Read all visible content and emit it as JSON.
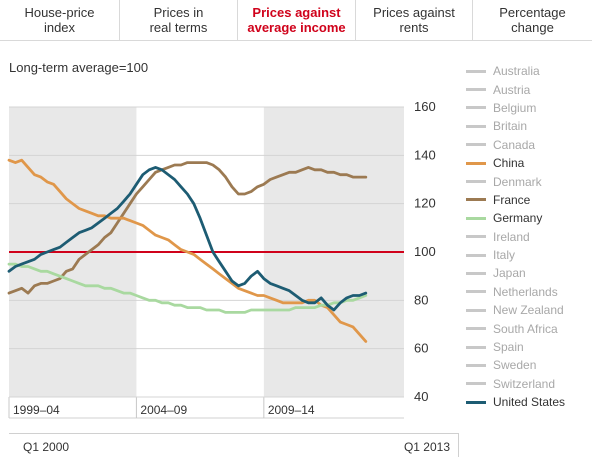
{
  "tabs": [
    {
      "label": "House-price\nindex",
      "active": false
    },
    {
      "label": "Prices in\nreal terms",
      "active": false
    },
    {
      "label": "Prices against\naverage income",
      "active": true
    },
    {
      "label": "Prices against\nrents",
      "active": false
    },
    {
      "label": "Percentage\nchange",
      "active": false
    }
  ],
  "subtitle": "Long-term average=100",
  "footer": {
    "start_label": "Q1 2000",
    "end_label": "Q1 2013"
  },
  "legend": [
    {
      "label": "Australia",
      "active": false,
      "color": "#c8c8c8"
    },
    {
      "label": "Austria",
      "active": false,
      "color": "#c8c8c8"
    },
    {
      "label": "Belgium",
      "active": false,
      "color": "#c8c8c8"
    },
    {
      "label": "Britain",
      "active": false,
      "color": "#c8c8c8"
    },
    {
      "label": "Canada",
      "active": false,
      "color": "#c8c8c8"
    },
    {
      "label": "China",
      "active": true,
      "color": "#e0974a"
    },
    {
      "label": "Denmark",
      "active": false,
      "color": "#c8c8c8"
    },
    {
      "label": "France",
      "active": true,
      "color": "#9c7a52"
    },
    {
      "label": "Germany",
      "active": true,
      "color": "#a9d9a0"
    },
    {
      "label": "Ireland",
      "active": false,
      "color": "#c8c8c8"
    },
    {
      "label": "Italy",
      "active": false,
      "color": "#c8c8c8"
    },
    {
      "label": "Japan",
      "active": false,
      "color": "#c8c8c8"
    },
    {
      "label": "Netherlands",
      "active": false,
      "color": "#c8c8c8"
    },
    {
      "label": "New Zealand",
      "active": false,
      "color": "#c8c8c8"
    },
    {
      "label": "South Africa",
      "active": false,
      "color": "#c8c8c8"
    },
    {
      "label": "Spain",
      "active": false,
      "color": "#c8c8c8"
    },
    {
      "label": "Sweden",
      "active": false,
      "color": "#c8c8c8"
    },
    {
      "label": "Switzerland",
      "active": false,
      "color": "#c8c8c8"
    },
    {
      "label": "United States",
      "active": true,
      "color": "#1d5c73"
    }
  ],
  "chart_data": {
    "type": "line",
    "ylim": [
      40,
      160
    ],
    "yticks": [
      40,
      60,
      80,
      100,
      120,
      140,
      160
    ],
    "xlim": [
      1999.0,
      2014.5
    ],
    "reference_line": {
      "value": 100,
      "color": "#d0021b"
    },
    "periods": [
      {
        "label": "1999–04",
        "start": 1999.0,
        "end": 2004.0,
        "shaded": true
      },
      {
        "label": "2004–09",
        "start": 2004.0,
        "end": 2009.0,
        "shaded": false
      },
      {
        "label": "2009–14",
        "start": 2009.0,
        "end": 2014.5,
        "shaded": true
      }
    ],
    "series": [
      {
        "name": "France",
        "color": "#9c7a52",
        "x": [
          1999.0,
          1999.25,
          1999.5,
          1999.75,
          2000.0,
          2000.25,
          2000.5,
          2000.75,
          2001.0,
          2001.25,
          2001.5,
          2001.75,
          2002.0,
          2002.25,
          2002.5,
          2002.75,
          2003.0,
          2003.25,
          2003.5,
          2003.75,
          2004.0,
          2004.25,
          2004.5,
          2004.75,
          2005.0,
          2005.25,
          2005.5,
          2005.75,
          2006.0,
          2006.25,
          2006.5,
          2006.75,
          2007.0,
          2007.25,
          2007.5,
          2007.75,
          2008.0,
          2008.25,
          2008.5,
          2008.75,
          2009.0,
          2009.25,
          2009.5,
          2009.75,
          2010.0,
          2010.25,
          2010.5,
          2010.75,
          2011.0,
          2011.25,
          2011.5,
          2011.75,
          2012.0,
          2012.25,
          2012.5,
          2012.75,
          2013.0
        ],
        "y": [
          83,
          84,
          85,
          83,
          86,
          87,
          87,
          88,
          89,
          92,
          93,
          97,
          99,
          101,
          103,
          106,
          108,
          112,
          116,
          120,
          124,
          127,
          130,
          133,
          134,
          135,
          136,
          136,
          137,
          137,
          137,
          137,
          136,
          134,
          131,
          127,
          124,
          124,
          125,
          127,
          128,
          130,
          131,
          132,
          133,
          133,
          134,
          135,
          134,
          134,
          133,
          133,
          132,
          132,
          131,
          131,
          131
        ]
      },
      {
        "name": "China",
        "color": "#e0974a",
        "x": [
          1999.0,
          1999.25,
          1999.5,
          1999.75,
          2000.0,
          2000.25,
          2000.5,
          2000.75,
          2001.0,
          2001.25,
          2001.5,
          2001.75,
          2002.0,
          2002.25,
          2002.5,
          2002.75,
          2003.0,
          2003.25,
          2003.5,
          2003.75,
          2004.0,
          2004.25,
          2004.5,
          2004.75,
          2005.0,
          2005.25,
          2005.5,
          2005.75,
          2006.0,
          2006.25,
          2006.5,
          2006.75,
          2007.0,
          2007.25,
          2007.5,
          2007.75,
          2008.0,
          2008.25,
          2008.5,
          2008.75,
          2009.0,
          2009.25,
          2009.5,
          2009.75,
          2010.0,
          2010.25,
          2010.5,
          2010.75,
          2011.0,
          2011.25,
          2011.5,
          2011.75,
          2012.0,
          2012.25,
          2012.5,
          2012.75,
          2013.0
        ],
        "y": [
          138,
          137,
          138,
          135,
          132,
          131,
          129,
          128,
          125,
          122,
          120,
          118,
          117,
          116,
          115,
          115,
          114,
          114,
          114,
          113,
          112,
          111,
          109,
          107,
          106,
          105,
          103,
          101,
          100,
          99,
          97,
          95,
          93,
          91,
          89,
          87,
          85,
          84,
          83,
          82,
          82,
          81,
          80,
          79,
          79,
          79,
          79,
          80,
          80,
          78,
          77,
          74,
          71,
          70,
          69,
          66,
          63
        ]
      },
      {
        "name": "Germany",
        "color": "#a9d9a0",
        "x": [
          1999.0,
          1999.25,
          1999.5,
          1999.75,
          2000.0,
          2000.25,
          2000.5,
          2000.75,
          2001.0,
          2001.25,
          2001.5,
          2001.75,
          2002.0,
          2002.25,
          2002.5,
          2002.75,
          2003.0,
          2003.25,
          2003.5,
          2003.75,
          2004.0,
          2004.25,
          2004.5,
          2004.75,
          2005.0,
          2005.25,
          2005.5,
          2005.75,
          2006.0,
          2006.25,
          2006.5,
          2006.75,
          2007.0,
          2007.25,
          2007.5,
          2007.75,
          2008.0,
          2008.25,
          2008.5,
          2008.75,
          2009.0,
          2009.25,
          2009.5,
          2009.75,
          2010.0,
          2010.25,
          2010.5,
          2010.75,
          2011.0,
          2011.25,
          2011.5,
          2011.75,
          2012.0,
          2012.25,
          2012.5,
          2012.75,
          2013.0
        ],
        "y": [
          95,
          95,
          94,
          94,
          93,
          92,
          92,
          91,
          90,
          89,
          88,
          87,
          86,
          86,
          86,
          85,
          85,
          84,
          83,
          83,
          82,
          81,
          80,
          80,
          79,
          79,
          78,
          78,
          77,
          77,
          77,
          76,
          76,
          76,
          75,
          75,
          75,
          75,
          76,
          76,
          76,
          76,
          76,
          76,
          76,
          77,
          77,
          77,
          77,
          78,
          78,
          79,
          79,
          80,
          80,
          81,
          82
        ]
      },
      {
        "name": "United States",
        "color": "#1d5c73",
        "x": [
          1999.0,
          1999.25,
          1999.5,
          1999.75,
          2000.0,
          2000.25,
          2000.5,
          2000.75,
          2001.0,
          2001.25,
          2001.5,
          2001.75,
          2002.0,
          2002.25,
          2002.5,
          2002.75,
          2003.0,
          2003.25,
          2003.5,
          2003.75,
          2004.0,
          2004.25,
          2004.5,
          2004.75,
          2005.0,
          2005.25,
          2005.5,
          2005.75,
          2006.0,
          2006.25,
          2006.5,
          2006.75,
          2007.0,
          2007.25,
          2007.5,
          2007.75,
          2008.0,
          2008.25,
          2008.5,
          2008.75,
          2009.0,
          2009.25,
          2009.5,
          2009.75,
          2010.0,
          2010.25,
          2010.5,
          2010.75,
          2011.0,
          2011.25,
          2011.5,
          2011.75,
          2012.0,
          2012.25,
          2012.5,
          2012.75,
          2013.0
        ],
        "y": [
          92,
          94,
          95,
          96,
          97,
          99,
          100,
          101,
          102,
          104,
          106,
          108,
          109,
          110,
          112,
          114,
          116,
          118,
          121,
          124,
          128,
          132,
          134,
          135,
          134,
          132,
          130,
          127,
          124,
          120,
          114,
          107,
          100,
          96,
          92,
          88,
          86,
          87,
          90,
          92,
          89,
          87,
          86,
          85,
          84,
          82,
          80,
          79,
          79,
          81,
          78,
          76,
          79,
          81,
          82,
          82,
          83
        ]
      }
    ]
  }
}
